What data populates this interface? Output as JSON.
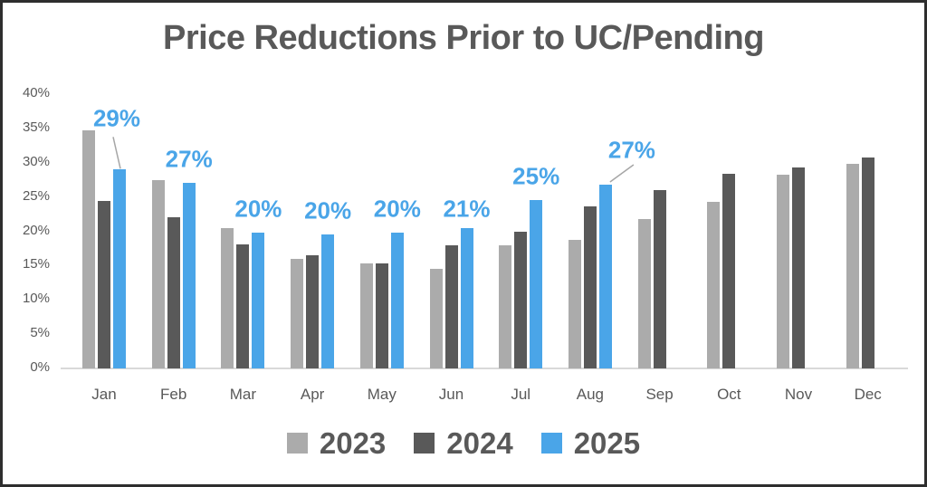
{
  "title": "Price Reductions Prior to UC/Pending",
  "chart_data": {
    "type": "bar",
    "categories": [
      "Jan",
      "Feb",
      "Mar",
      "Apr",
      "May",
      "Jun",
      "Jul",
      "Aug",
      "Sep",
      "Oct",
      "Nov",
      "Dec"
    ],
    "series": [
      {
        "name": "2023",
        "color": "#ababab",
        "values": [
          34.7,
          27.5,
          20.5,
          16.0,
          15.3,
          14.5,
          18.0,
          18.8,
          21.8,
          24.3,
          28.3,
          29.9
        ]
      },
      {
        "name": "2024",
        "color": "#595959",
        "values": [
          24.4,
          22.0,
          18.1,
          16.5,
          15.3,
          18.0,
          20.0,
          23.6,
          26.0,
          28.4,
          29.3,
          30.8
        ]
      },
      {
        "name": "2025",
        "color": "#4aa5e8",
        "values": [
          29.0,
          27.0,
          19.8,
          19.5,
          19.8,
          20.5,
          24.5,
          26.8,
          null,
          null,
          null,
          null
        ],
        "data_labels": [
          "29%",
          "27%",
          "20%",
          "20%",
          "20%",
          "21%",
          "25%",
          "27%"
        ]
      }
    ],
    "title": "Price Reductions Prior to UC/Pending",
    "xlabel": "",
    "ylabel": "",
    "ylim": [
      0,
      40
    ],
    "ytick_step": 5,
    "ytick_labels": [
      "0%",
      "5%",
      "10%",
      "15%",
      "20%",
      "25%",
      "30%",
      "35%",
      "40%"
    ],
    "grid": false,
    "legend_position": "bottom",
    "data_label_color": "#4aa5e8",
    "axis_line_color": "#d9d9d9",
    "leader_line_color": "#a6a6a6"
  }
}
